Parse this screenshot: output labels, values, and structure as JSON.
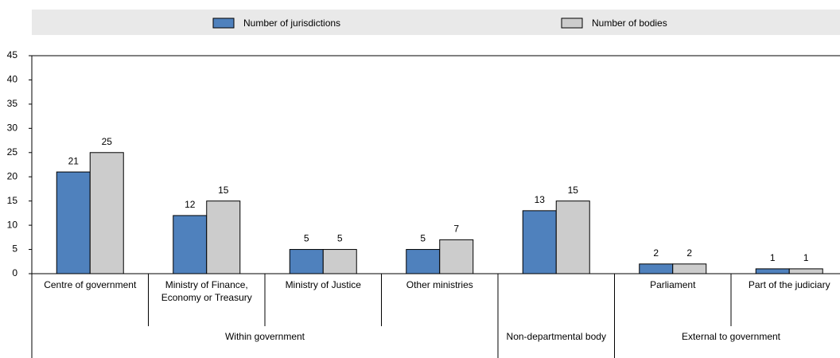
{
  "chart_data": {
    "type": "bar",
    "categories": [
      "Centre of government",
      "Ministry of Finance, Economy or Treasury",
      "Ministry of Justice",
      "Other ministries",
      null,
      "Parliament",
      "Part of the judiciary"
    ],
    "groups": [
      {
        "name": "Within government",
        "span": 4
      },
      {
        "name": "Non-departmental body",
        "span": 1
      },
      {
        "name": "External to government",
        "span": 2
      }
    ],
    "series": [
      {
        "name": "Number of jurisdictions",
        "color": "#4f81bd",
        "values": [
          21,
          12,
          5,
          5,
          13,
          2,
          1
        ]
      },
      {
        "name": "Number of bodies",
        "color": "#cccccc",
        "values": [
          25,
          15,
          5,
          7,
          15,
          2,
          1
        ]
      }
    ],
    "ylim": [
      0,
      45
    ],
    "yticks": [
      0,
      5,
      10,
      15,
      20,
      25,
      30,
      35,
      40,
      45
    ],
    "grid": false,
    "legend": "top"
  }
}
